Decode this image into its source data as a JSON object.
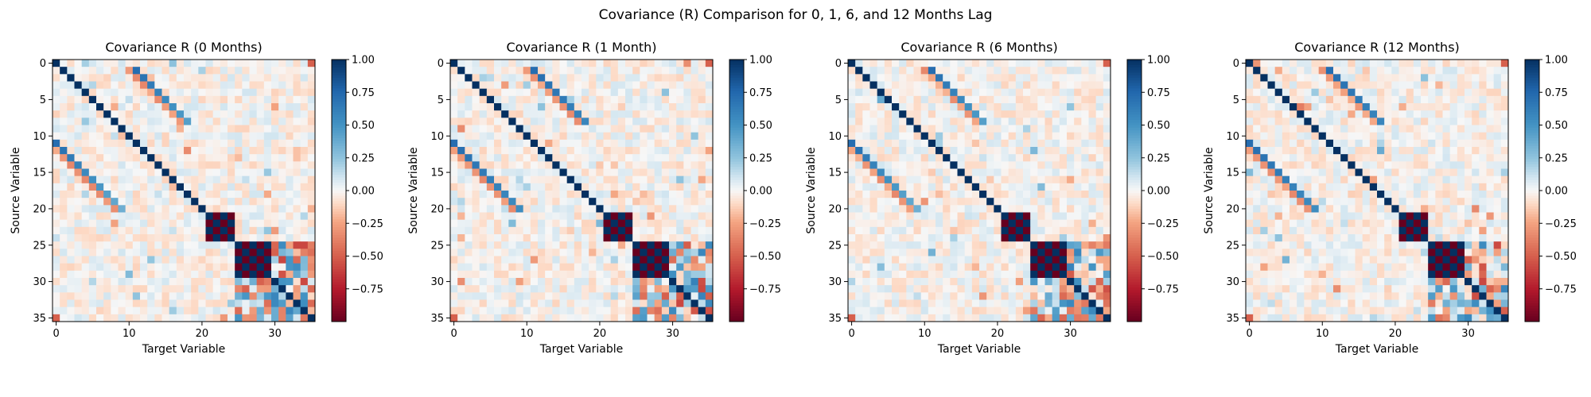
{
  "suptitle": "Covariance (R) Comparison for 0, 1, 6, and 12 Months Lag",
  "colormap": {
    "name": "RdBu",
    "low": "#67001f",
    "mid": "#f7f7f7",
    "high": "#053061"
  },
  "chart_data": [
    {
      "type": "heatmap",
      "title": "Covariance R (0 Months)",
      "lag_months": 0,
      "xlabel": "Target Variable",
      "ylabel": "Source Variable",
      "n": 36,
      "xticks": [
        0,
        10,
        20,
        30
      ],
      "yticks": [
        0,
        5,
        10,
        15,
        20,
        25,
        30,
        35
      ],
      "vlim": [
        -1,
        1
      ],
      "colorbar_ticks": [
        1.0,
        0.75,
        0.5,
        0.25,
        0.0,
        -0.25,
        -0.5,
        -0.75
      ],
      "colorbar_tick_labels": [
        "1.00",
        "0.75",
        "0.50",
        "0.25",
        "0.00",
        "−0.25",
        "−0.50",
        "−0.75"
      ],
      "structure": {
        "diagonal": 1.0,
        "mirror_bands": [
          {
            "sources": [
              11,
              20
            ],
            "targets": [
              0,
              9
            ]
          },
          {
            "sources": [
              1,
              8
            ],
            "targets": [
              11,
              18
            ]
          }
        ],
        "block_a": {
          "range": [
            21,
            24
          ],
          "pattern": "checkerboard +-1"
        },
        "block_b": {
          "range": [
            25,
            29
          ],
          "pattern": "checkerboard +-1"
        },
        "corner_cells": [
          {
            "source": 0,
            "target": 35,
            "value": -0.5
          },
          {
            "source": 35,
            "target": 0,
            "value": -0.5
          }
        ]
      }
    },
    {
      "type": "heatmap",
      "title": "Covariance R (1 Month)",
      "lag_months": 1,
      "xlabel": "Target Variable",
      "ylabel": "Source Variable",
      "n": 36,
      "xticks": [
        0,
        10,
        20,
        30
      ],
      "yticks": [
        0,
        5,
        10,
        15,
        20,
        25,
        30,
        35
      ],
      "vlim": [
        -1,
        1
      ],
      "colorbar_ticks": [
        1.0,
        0.75,
        0.5,
        0.25,
        0.0,
        -0.25,
        -0.5,
        -0.75
      ],
      "colorbar_tick_labels": [
        "1.00",
        "0.75",
        "0.50",
        "0.25",
        "0.00",
        "−0.25",
        "−0.50",
        "−0.75"
      ],
      "structure": {
        "diagonal": 1.0,
        "mirror_bands": [
          {
            "sources": [
              11,
              20
            ],
            "targets": [
              0,
              9
            ]
          },
          {
            "sources": [
              1,
              8
            ],
            "targets": [
              11,
              18
            ]
          }
        ],
        "block_a": {
          "range": [
            21,
            24
          ],
          "pattern": "checkerboard +-1"
        },
        "block_b": {
          "range": [
            25,
            29
          ],
          "pattern": "checkerboard +-1"
        },
        "corner_cells": [
          {
            "source": 0,
            "target": 35,
            "value": -0.5
          },
          {
            "source": 35,
            "target": 0,
            "value": -0.5
          }
        ]
      }
    },
    {
      "type": "heatmap",
      "title": "Covariance R (6 Months)",
      "lag_months": 6,
      "xlabel": "Target Variable",
      "ylabel": "Source Variable",
      "n": 36,
      "xticks": [
        0,
        10,
        20,
        30
      ],
      "yticks": [
        0,
        5,
        10,
        15,
        20,
        25,
        30,
        35
      ],
      "vlim": [
        -1,
        1
      ],
      "colorbar_ticks": [
        1.0,
        0.75,
        0.5,
        0.25,
        0.0,
        -0.25,
        -0.5,
        -0.75
      ],
      "colorbar_tick_labels": [
        "1.00",
        "0.75",
        "0.50",
        "0.25",
        "0.00",
        "−0.25",
        "−0.50",
        "−0.75"
      ],
      "structure": {
        "diagonal": 1.0,
        "mirror_bands": [
          {
            "sources": [
              11,
              20
            ],
            "targets": [
              0,
              9
            ]
          },
          {
            "sources": [
              1,
              8
            ],
            "targets": [
              11,
              18
            ]
          }
        ],
        "block_a": {
          "range": [
            21,
            24
          ],
          "pattern": "checkerboard +-1"
        },
        "block_b": {
          "range": [
            25,
            29
          ],
          "pattern": "checkerboard +-1"
        },
        "corner_cells": [
          {
            "source": 0,
            "target": 35,
            "value": -0.5
          },
          {
            "source": 35,
            "target": 0,
            "value": -0.5
          }
        ]
      }
    },
    {
      "type": "heatmap",
      "title": "Covariance R (12 Months)",
      "lag_months": 12,
      "xlabel": "Target Variable",
      "ylabel": "Source Variable",
      "n": 36,
      "xticks": [
        0,
        10,
        20,
        30
      ],
      "yticks": [
        0,
        5,
        10,
        15,
        20,
        25,
        30,
        35
      ],
      "vlim": [
        -1,
        1
      ],
      "colorbar_ticks": [
        1.0,
        0.75,
        0.5,
        0.25,
        0.0,
        -0.25,
        -0.5,
        -0.75
      ],
      "colorbar_tick_labels": [
        "1.00",
        "0.75",
        "0.50",
        "0.25",
        "0.00",
        "−0.25",
        "−0.50",
        "−0.75"
      ],
      "structure": {
        "diagonal": 1.0,
        "mirror_bands": [
          {
            "sources": [
              11,
              20
            ],
            "targets": [
              0,
              9
            ]
          },
          {
            "sources": [
              1,
              8
            ],
            "targets": [
              11,
              18
            ]
          }
        ],
        "block_a": {
          "range": [
            21,
            24
          ],
          "pattern": "checkerboard +-1"
        },
        "block_b": {
          "range": [
            25,
            29
          ],
          "pattern": "checkerboard +-1"
        },
        "corner_cells": [
          {
            "source": 0,
            "target": 35,
            "value": -0.5
          },
          {
            "source": 35,
            "target": 0,
            "value": -0.5
          }
        ]
      }
    }
  ]
}
